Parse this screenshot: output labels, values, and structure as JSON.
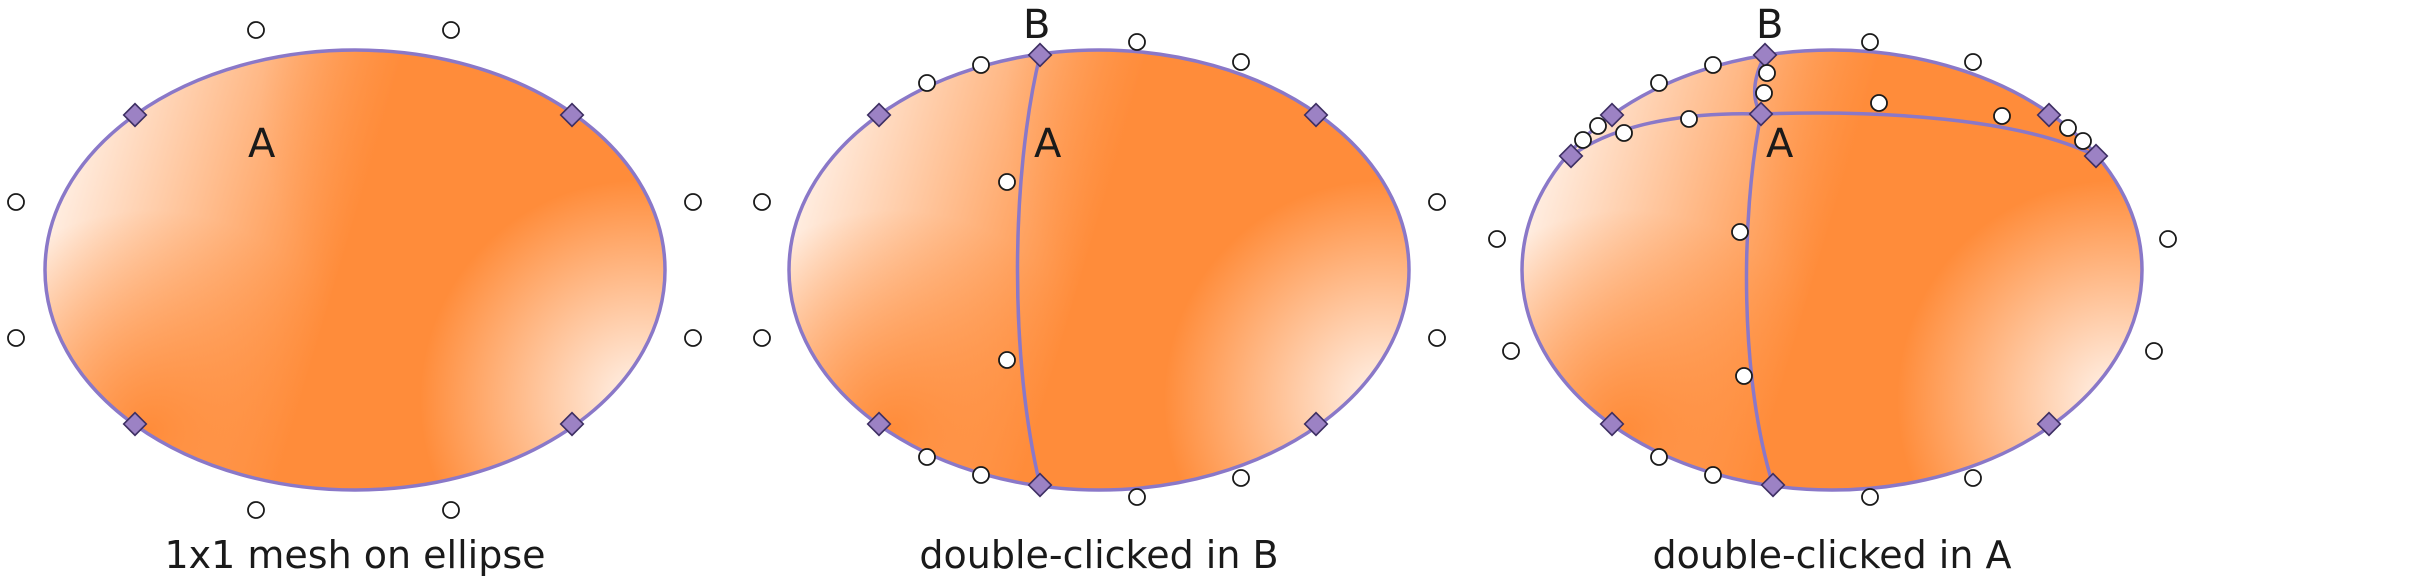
{
  "panels": [
    {
      "caption": "1x1 mesh on ellipse",
      "labels": [
        "A"
      ]
    },
    {
      "caption": "double-clicked in B",
      "labels": [
        "B",
        "A"
      ]
    },
    {
      "caption": "double-clicked in A",
      "labels": [
        "B",
        "A"
      ]
    }
  ],
  "colors": {
    "gradient_dark": "#ff8c3a",
    "gradient_light": "#fff5ee",
    "mesh_line": "#8a78c8",
    "anchor_fill": "#9c82c4"
  }
}
